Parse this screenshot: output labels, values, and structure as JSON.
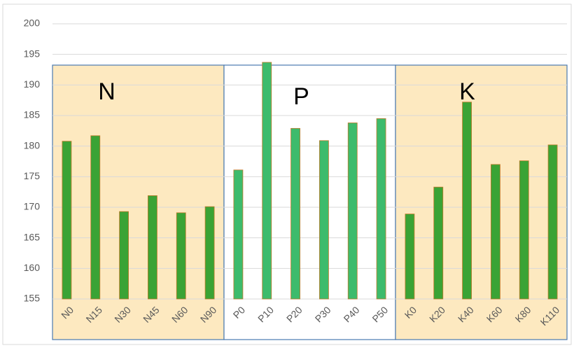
{
  "chart_data": {
    "type": "bar",
    "categories": [
      "N0",
      "N15",
      "N30",
      "N45",
      "N60",
      "N90",
      "P0",
      "P10",
      "P20",
      "P30",
      "P40",
      "P50",
      "K0",
      "K20",
      "K40",
      "K60",
      "K80",
      "K110"
    ],
    "values": [
      180.8,
      181.7,
      169.3,
      171.9,
      169.1,
      170.1,
      176.1,
      193.7,
      182.9,
      180.9,
      183.8,
      184.5,
      168.9,
      173.3,
      187.2,
      177.0,
      177.6,
      180.2
    ],
    "groups": [
      {
        "name": "N",
        "fill": "#fde9c0",
        "color": "#3aa335"
      },
      {
        "name": "P",
        "fill": "#ffffff",
        "color": "#3dbb6c"
      },
      {
        "name": "K",
        "fill": "#fde9c0",
        "color": "#3aa335"
      }
    ],
    "ylim": [
      155,
      200
    ],
    "yticks": [
      155,
      160,
      165,
      170,
      175,
      180,
      185,
      190,
      195,
      200
    ],
    "grid": true
  }
}
